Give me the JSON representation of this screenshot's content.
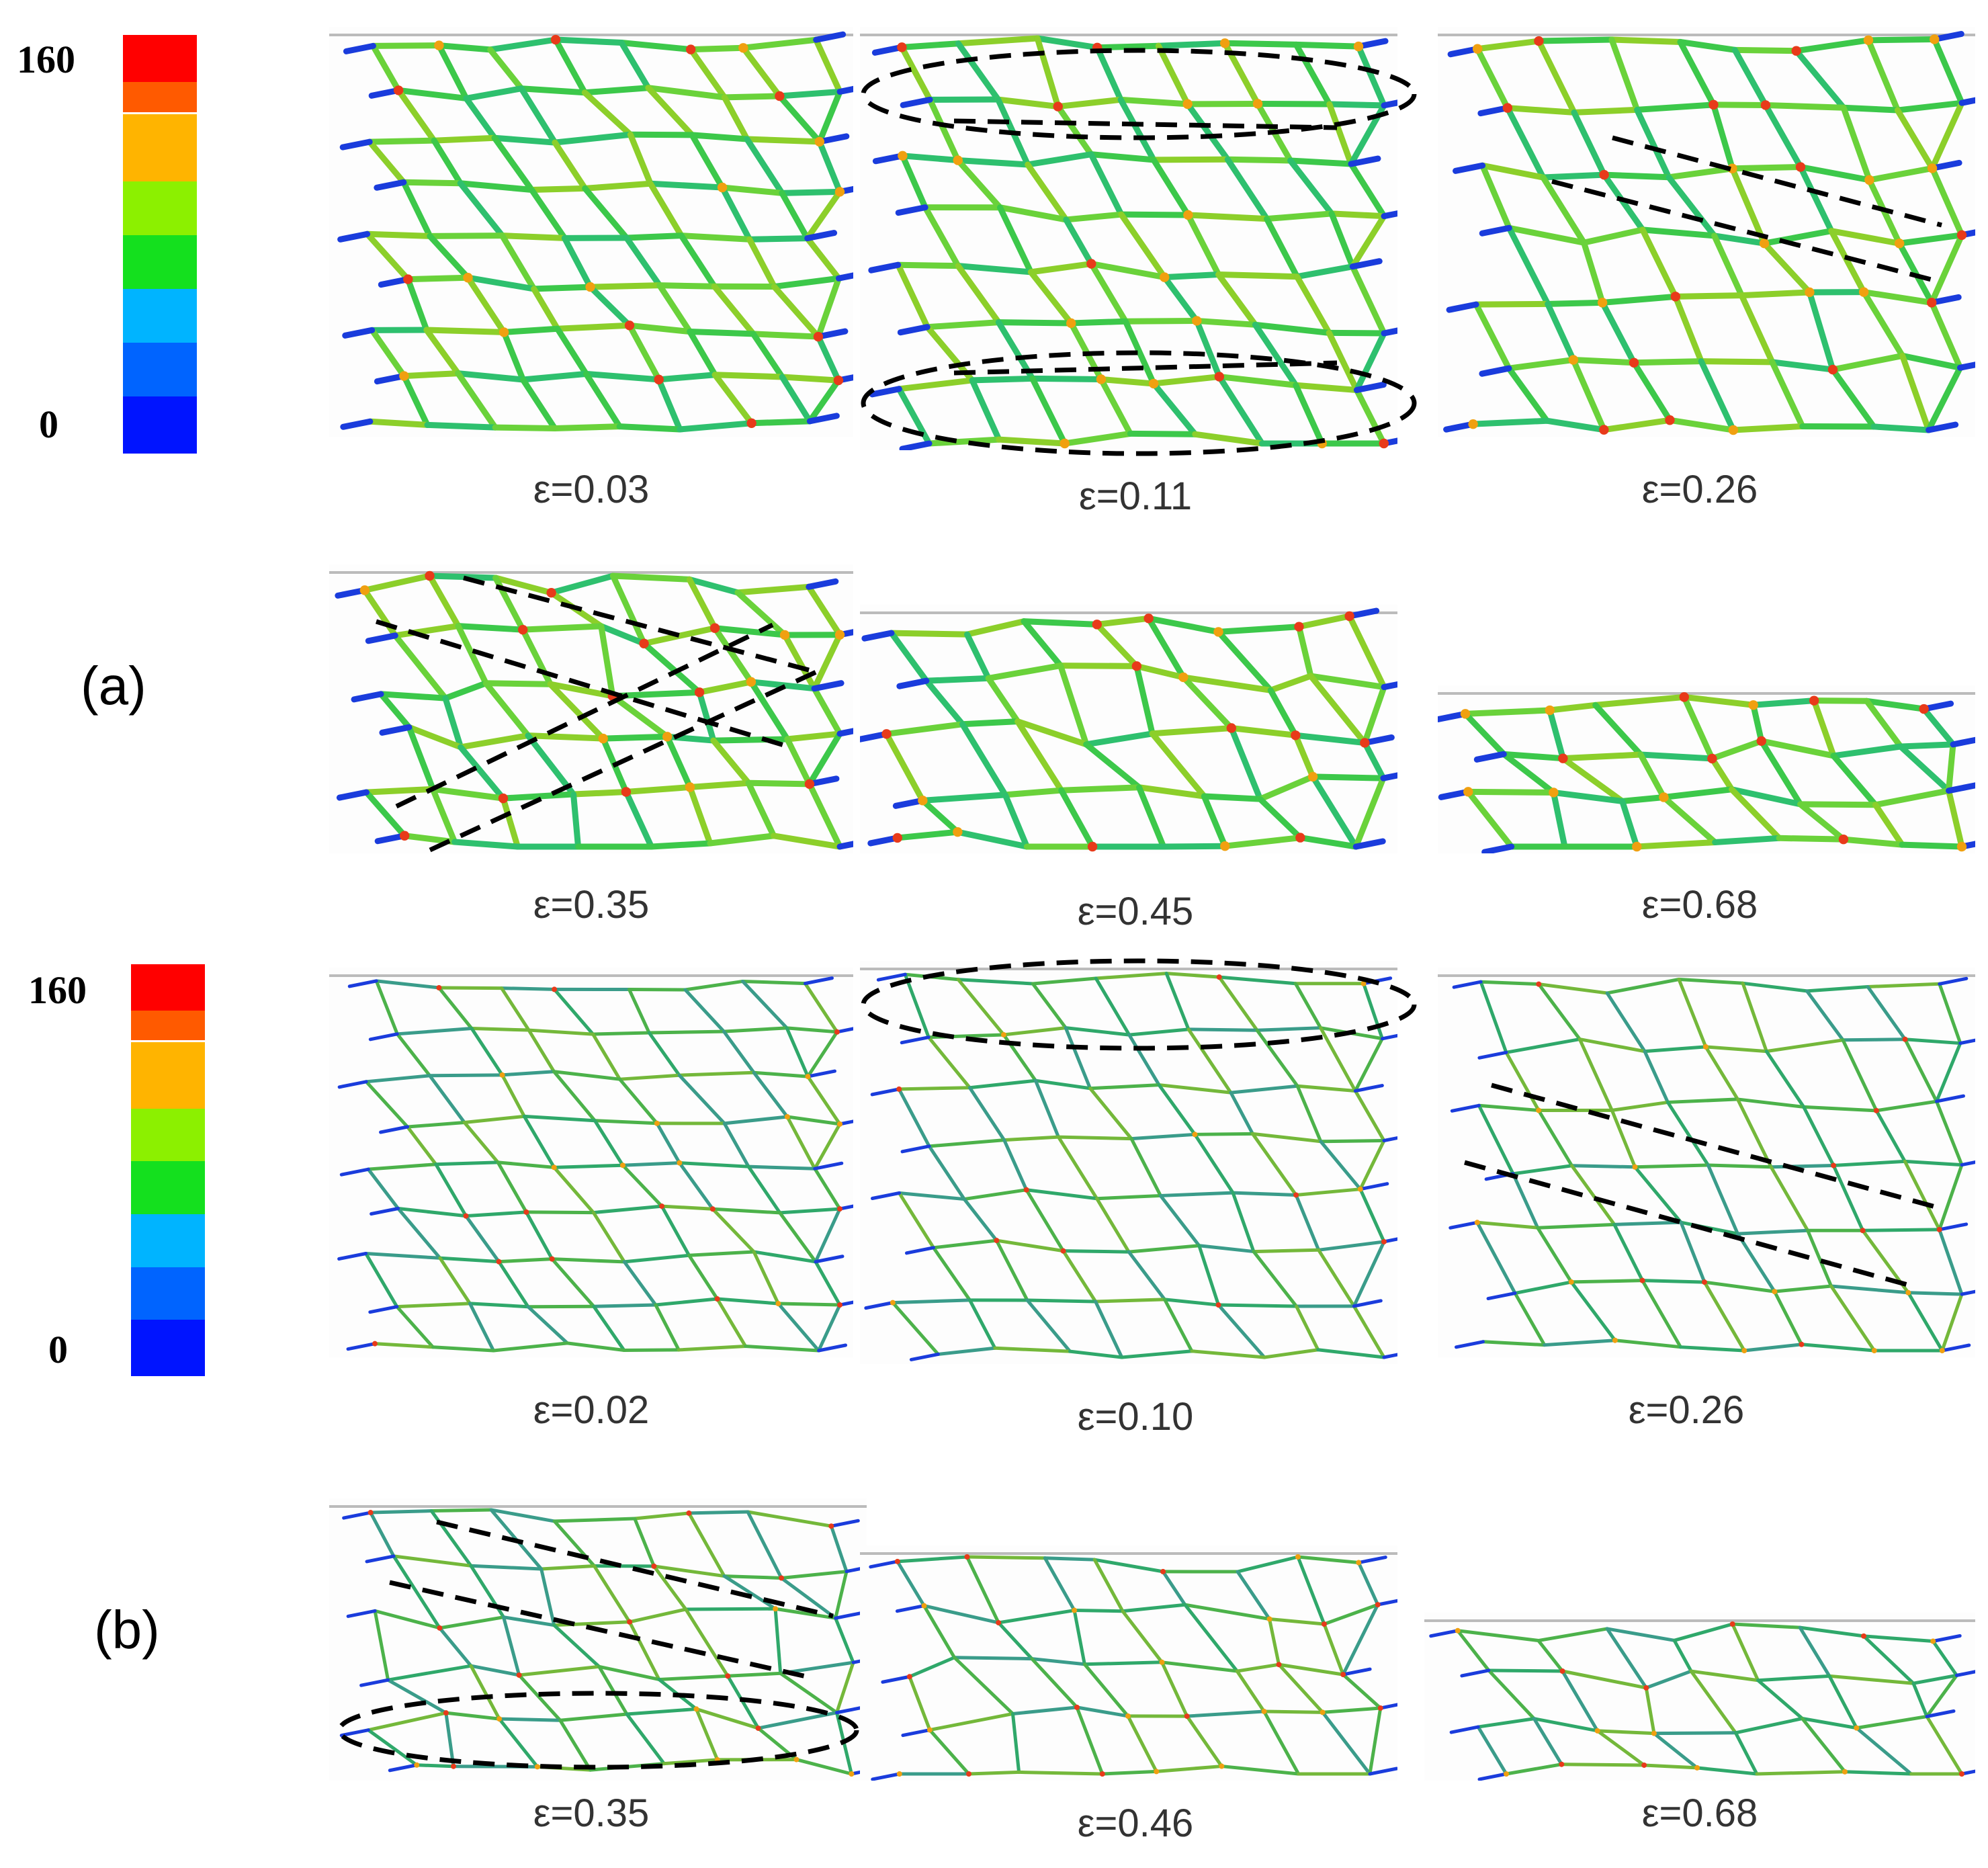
{
  "colorbar": {
    "max_label": "160",
    "min_label": "0",
    "colors": [
      "#ff0000",
      "#ff5a00",
      "#ffb400",
      "#8cf000",
      "#14e01e",
      "#00b4ff",
      "#0064ff",
      "#0014ff"
    ]
  },
  "part_a": {
    "label": "(a)",
    "panels": [
      {
        "strain": "ε=0.03"
      },
      {
        "strain": "ε=0.11"
      },
      {
        "strain": "ε=0.26"
      },
      {
        "strain": "ε=0.35"
      },
      {
        "strain": "ε=0.45"
      },
      {
        "strain": "ε=0.68"
      }
    ]
  },
  "part_b": {
    "label": "(b)",
    "panels": [
      {
        "strain": "ε=0.02"
      },
      {
        "strain": "ε=0.10"
      },
      {
        "strain": "ε=0.26"
      },
      {
        "strain": "ε=0.35"
      },
      {
        "strain": "ε=0.46"
      },
      {
        "strain": "ε=0.68"
      }
    ]
  }
}
